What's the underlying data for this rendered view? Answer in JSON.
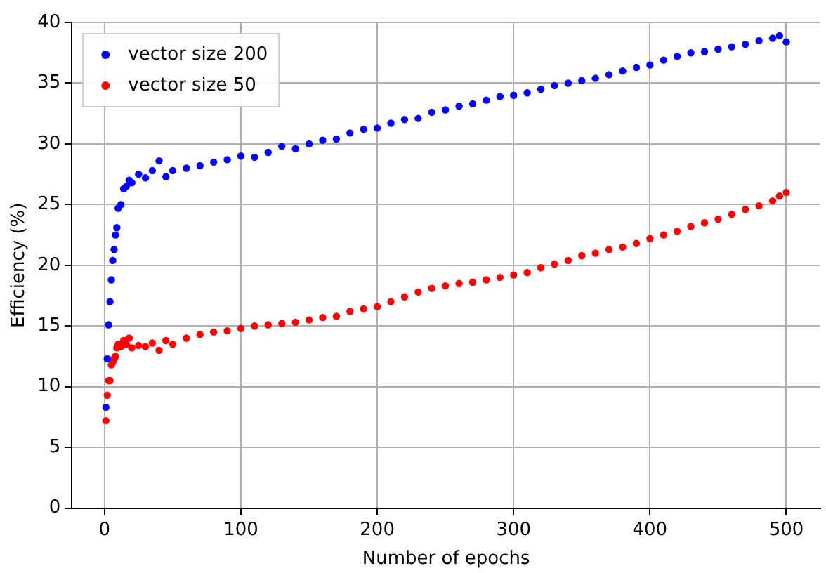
{
  "chart_data": {
    "type": "scatter",
    "xlabel": "Number of epochs",
    "ylabel": "Efficiency (%)",
    "x": [
      1,
      2,
      3,
      4,
      5,
      6,
      7,
      8,
      9,
      10,
      12,
      14,
      16,
      18,
      20,
      25,
      30,
      35,
      40,
      45,
      50,
      60,
      70,
      80,
      90,
      100,
      110,
      120,
      130,
      140,
      150,
      160,
      170,
      180,
      190,
      200,
      210,
      220,
      230,
      240,
      250,
      260,
      270,
      280,
      290,
      300,
      310,
      320,
      330,
      340,
      350,
      360,
      370,
      380,
      390,
      400,
      410,
      420,
      430,
      440,
      450,
      460,
      470,
      480,
      490,
      495,
      500
    ],
    "series": [
      {
        "name": "vector size 200",
        "color": "#0000ff",
        "values": [
          8.3,
          12.3,
          15.1,
          17,
          18.8,
          20.4,
          21.3,
          22.5,
          23.1,
          24.7,
          25,
          26.3,
          26.5,
          27,
          26.8,
          27.5,
          27.2,
          27.8,
          28.6,
          27.3,
          27.8,
          28,
          28.2,
          28.5,
          28.7,
          29,
          28.9,
          29.3,
          29.8,
          29.6,
          30,
          30.3,
          30.4,
          30.9,
          31.2,
          31.3,
          31.7,
          32,
          32.1,
          32.6,
          32.8,
          33.1,
          33.3,
          33.6,
          33.9,
          34,
          34.2,
          34.5,
          34.8,
          35,
          35.2,
          35.4,
          35.7,
          36,
          36.3,
          36.5,
          36.9,
          37.2,
          37.5,
          37.6,
          37.8,
          38,
          38.2,
          38.5,
          38.7,
          38.9,
          38.4
        ]
      },
      {
        "name": "vector size 50",
        "color": "#ff0000",
        "values": [
          7.2,
          9.3,
          10.5,
          10.5,
          11.8,
          12,
          12.3,
          12.5,
          13.2,
          13.5,
          13.3,
          13.8,
          13.5,
          14,
          13.2,
          13.4,
          13.3,
          13.6,
          13,
          13.8,
          13.5,
          14,
          14.3,
          14.5,
          14.6,
          14.8,
          15,
          15.1,
          15.2,
          15.3,
          15.5,
          15.7,
          15.8,
          16.2,
          16.4,
          16.6,
          17,
          17.4,
          17.8,
          18.1,
          18.3,
          18.5,
          18.6,
          18.8,
          19,
          19.2,
          19.4,
          19.8,
          20.1,
          20.4,
          20.8,
          21,
          21.3,
          21.5,
          21.8,
          22.2,
          22.5,
          22.8,
          23.2,
          23.5,
          23.8,
          24.2,
          24.6,
          24.9,
          25.3,
          25.7,
          26
        ]
      }
    ],
    "xlim": [
      -24,
      525
    ],
    "xticks": [
      0,
      100,
      200,
      300,
      400,
      500
    ],
    "ylim": [
      0,
      40
    ],
    "yticks": [
      0,
      5,
      10,
      15,
      20,
      25,
      30,
      35,
      40
    ],
    "grid": true,
    "legend": "top left",
    "marker": "circle"
  }
}
